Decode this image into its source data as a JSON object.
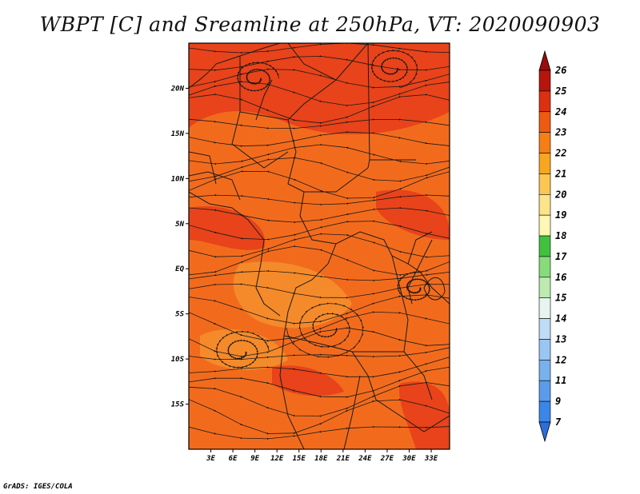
{
  "title": "WBPT [C] and Sreamline at 250hPa, VT: 2020090903",
  "credit": "GrADS: IGES/COLA",
  "map": {
    "lat_range": [
      -20,
      25
    ],
    "lon_range": [
      0,
      35.5
    ],
    "lat_ticks": [
      {
        "value": 20,
        "label": "20N"
      },
      {
        "value": 15,
        "label": "15N"
      },
      {
        "value": 10,
        "label": "10N"
      },
      {
        "value": 5,
        "label": "5N"
      },
      {
        "value": 0,
        "label": "EQ"
      },
      {
        "value": -5,
        "label": "5S"
      },
      {
        "value": -10,
        "label": "10S"
      },
      {
        "value": -15,
        "label": "15S"
      }
    ],
    "lon_ticks": [
      {
        "value": 3,
        "label": "3E"
      },
      {
        "value": 6,
        "label": "6E"
      },
      {
        "value": 9,
        "label": "9E"
      },
      {
        "value": 12,
        "label": "12E"
      },
      {
        "value": 15,
        "label": "15E"
      },
      {
        "value": 18,
        "label": "18E"
      },
      {
        "value": 21,
        "label": "21E"
      },
      {
        "value": 24,
        "label": "24E"
      },
      {
        "value": 27,
        "label": "27E"
      },
      {
        "value": 30,
        "label": "30E"
      },
      {
        "value": 33,
        "label": "33E"
      }
    ],
    "field_colors": {
      "base": "#f26b1d",
      "high": "#e8431a",
      "low": "#f58a2a"
    }
  },
  "colorbar": {
    "levels": [
      "7",
      "9",
      "11",
      "12",
      "13",
      "14",
      "15",
      "16",
      "17",
      "18",
      "19",
      "20",
      "21",
      "22",
      "23",
      "24",
      "25",
      "26"
    ],
    "colors": [
      "#2a6fdc",
      "#3b86e6",
      "#5a9cea",
      "#78b1ee",
      "#9ac6f2",
      "#bfdcf6",
      "#e6f6ee",
      "#bdeab0",
      "#87db7a",
      "#42c13f",
      "#fff7b3",
      "#fde38a",
      "#fbc652",
      "#f8a61f",
      "#f57e15",
      "#ef5a12",
      "#dd3011",
      "#b8140e",
      "#9a0c0b"
    ]
  }
}
